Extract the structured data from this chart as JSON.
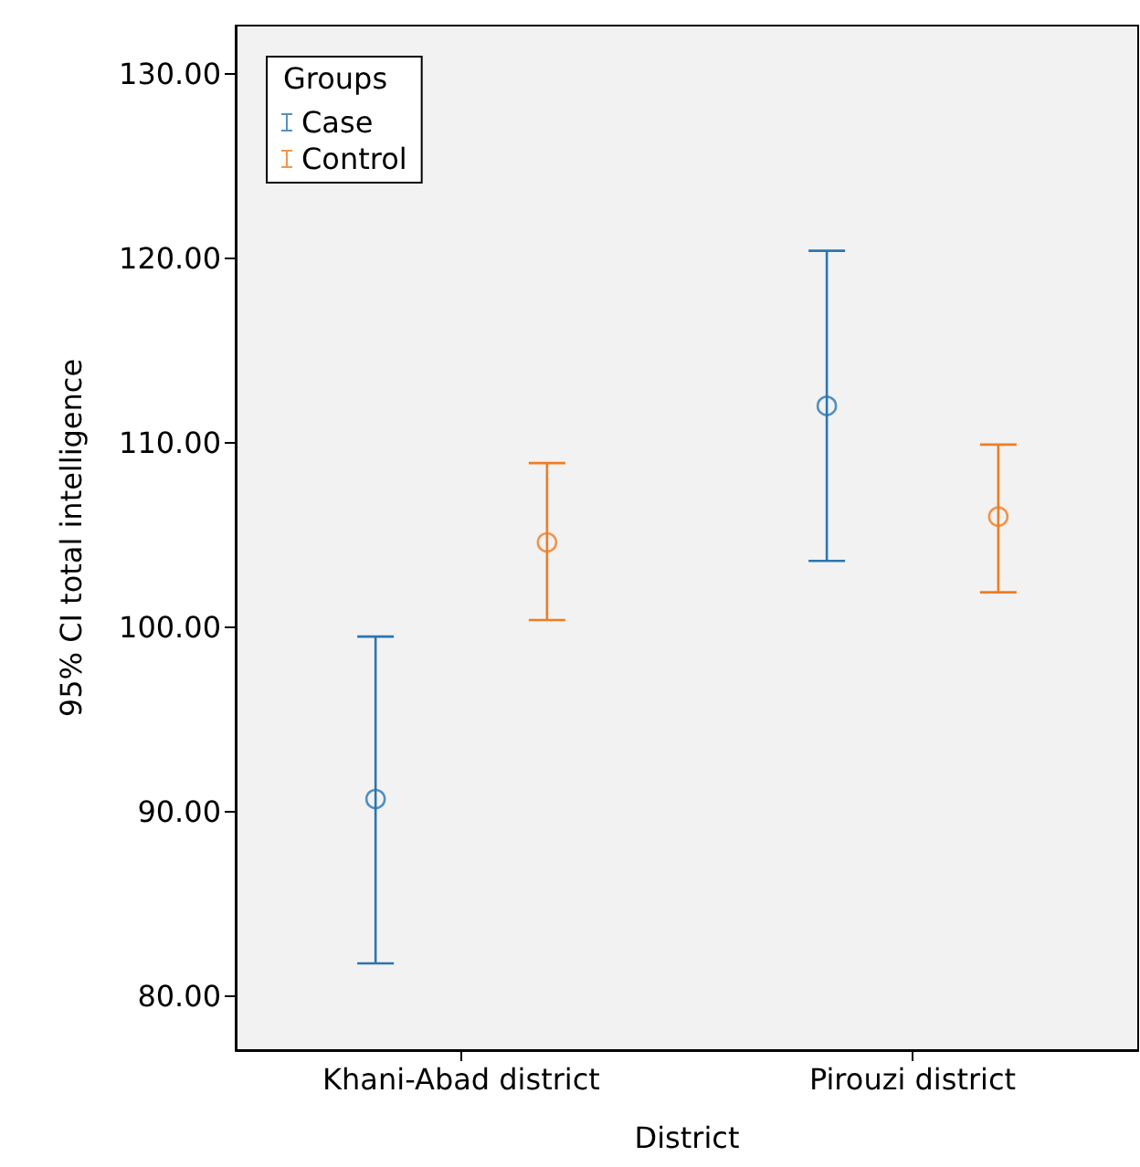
{
  "chart_data": {
    "type": "scatter",
    "xlabel": "District",
    "ylabel": "95% CI total intelligence",
    "legend_title": "Groups",
    "categories": [
      "Khani-Abad district",
      "Pirouzi district"
    ],
    "series": [
      {
        "name": "Case",
        "color": "#2b75b0",
        "values": [
          90.7,
          112.0
        ],
        "errors": [
          [
            81.8,
            99.5
          ],
          [
            103.6,
            120.4
          ]
        ]
      },
      {
        "name": "Control",
        "color": "#f07c22",
        "values": [
          104.6,
          106.0
        ],
        "errors": [
          [
            100.4,
            108.9
          ],
          [
            101.9,
            109.9
          ]
        ]
      }
    ],
    "ylim": [
      77.1,
      132.6
    ],
    "yticks": [
      {
        "value": 80,
        "label": "80.00"
      },
      {
        "value": 90,
        "label": "90.00"
      },
      {
        "value": 100,
        "label": "100.00"
      },
      {
        "value": 110,
        "label": "110.00"
      },
      {
        "value": 120,
        "label": "120.00"
      },
      {
        "value": 130,
        "label": "130.00"
      }
    ],
    "marker": "circle",
    "legend": "top left",
    "grid": false
  }
}
